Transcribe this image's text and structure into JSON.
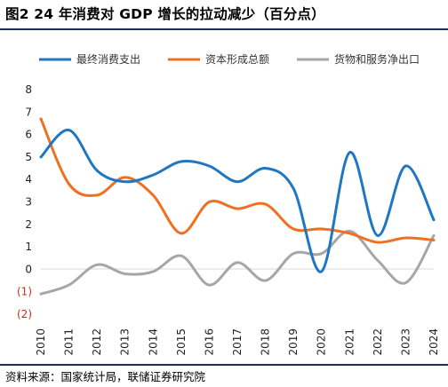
{
  "header": {
    "title": "图2  24 年消费对 GDP 增长的拉动减少（百分点）"
  },
  "footer": {
    "source": "资料来源：国家统计局，联储证券研究院"
  },
  "colors": {
    "consumption": "#1f77c4",
    "capital": "#f07021",
    "net_exports": "#a6a6a6",
    "negative_tick": "#d42a1e",
    "rule": "#1f2d5a"
  },
  "chart_data": {
    "type": "line",
    "title": "24 年消费对 GDP 增长的拉动减少（百分点）",
    "x": [
      "2010",
      "2011",
      "2012",
      "2013",
      "2014",
      "2015",
      "2016",
      "2017",
      "2018",
      "2019",
      "2020",
      "2021",
      "2022",
      "2023",
      "2024"
    ],
    "series": [
      {
        "name": "最终消费支出",
        "color": "#1f77c4",
        "values": [
          5.0,
          6.2,
          4.4,
          3.9,
          4.2,
          4.8,
          4.6,
          3.9,
          4.5,
          3.6,
          -0.1,
          5.2,
          1.5,
          4.6,
          2.2
        ]
      },
      {
        "name": "资本形成总额",
        "color": "#f07021",
        "values": [
          6.7,
          3.8,
          3.3,
          4.1,
          3.3,
          1.6,
          3.0,
          2.7,
          2.9,
          1.8,
          1.8,
          1.6,
          1.2,
          1.4,
          1.3
        ]
      },
      {
        "name": "货物和服务净出口",
        "color": "#a6a6a6",
        "values": [
          -1.1,
          -0.7,
          0.2,
          -0.2,
          -0.1,
          0.6,
          -0.7,
          0.3,
          -0.5,
          0.7,
          0.7,
          1.7,
          0.4,
          -0.6,
          1.5
        ]
      }
    ],
    "y_ticks": [
      "8",
      "7",
      "6",
      "5",
      "4",
      "3",
      "2",
      "1",
      "0",
      "(1)",
      "(2)"
    ],
    "ylim": [
      -2,
      8
    ],
    "grid": false,
    "legend_position": "top"
  }
}
